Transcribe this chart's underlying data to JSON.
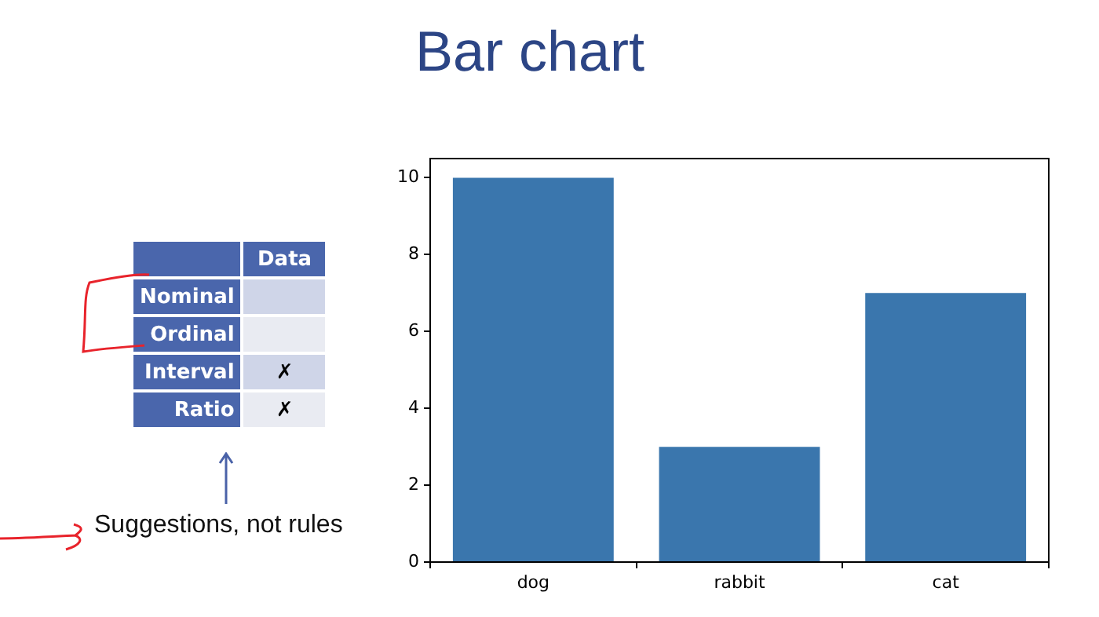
{
  "chart_data": [
    {
      "type": "bar",
      "title": "Bar chart",
      "categories": [
        "dog",
        "rabbit",
        "cat"
      ],
      "values": [
        10,
        3,
        7
      ],
      "color": "#3a76ad",
      "ylim": [
        0,
        10.5
      ],
      "yticks": [
        0,
        2,
        4,
        6,
        8,
        10
      ],
      "grid": false,
      "legend": false
    },
    {
      "type": "other",
      "categories": [
        "Data"
      ],
      "y_categories": [
        "Nominal",
        "Ordinal",
        "Interval",
        "Ratio"
      ],
      "cell_labels": [
        [
          null
        ],
        [
          null
        ],
        [
          "✗"
        ],
        [
          "✗"
        ]
      ],
      "annotations": [
        "Suggestions, not rules"
      ]
    }
  ]
}
